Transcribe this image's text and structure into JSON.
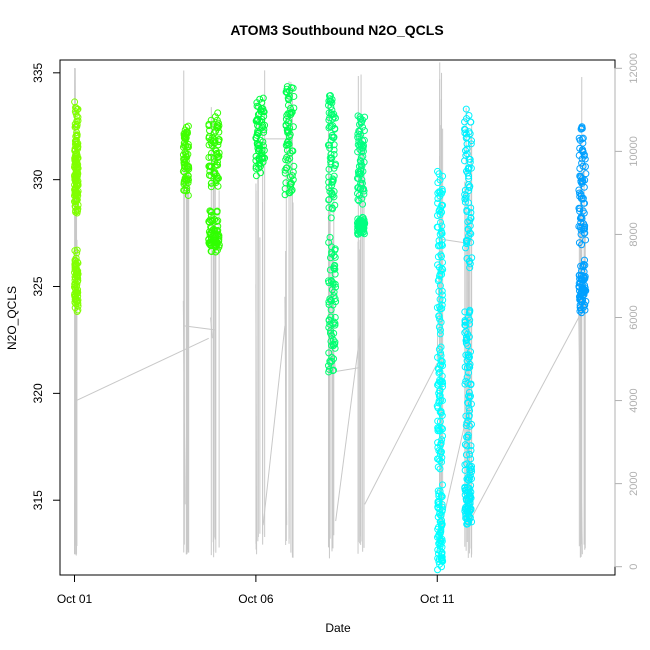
{
  "chart_data": {
    "type": "scatter",
    "title": "ATOM3 Southbound N2O_QCLS",
    "xlabel": "Date",
    "ylabel": "N2O_QCLS",
    "x_ticks": [
      "Oct 01",
      "Oct 06",
      "Oct 11"
    ],
    "x_tick_days": [
      1,
      6,
      11
    ],
    "xlim_days": [
      0.6,
      15.9
    ],
    "ylim": [
      311.5,
      335.6
    ],
    "y_ticks": [
      315,
      320,
      325,
      330,
      335
    ],
    "y2_ticks": [
      0,
      2000,
      4000,
      6000,
      8000,
      10000,
      12000
    ],
    "y2lim": [
      -200,
      12200
    ],
    "series": [
      {
        "day_start": 1.0,
        "day_end": 1.1,
        "color": "#80ff00",
        "values": [
          [
            333.5,
            331.0,
            329.4
          ],
          [
            331.8,
            329.9,
            328.4
          ],
          [
            326.5,
            325.2,
            324.0
          ]
        ]
      },
      {
        "day_start": 4.0,
        "day_end": 4.15,
        "color": "#40ff00",
        "values": [
          [
            332.4,
            331.0,
            329.5
          ]
        ]
      },
      {
        "day_start": 4.7,
        "day_end": 5.0,
        "color": "#30ff00",
        "values": [
          [
            332.9,
            331.3,
            329.7
          ],
          [
            328.4,
            327.2,
            326.8
          ]
        ]
      },
      {
        "day_start": 6.0,
        "day_end": 6.25,
        "color": "#00ff40",
        "values": [
          [
            333.8,
            332.0,
            330.4
          ]
        ]
      },
      {
        "day_start": 6.8,
        "day_end": 7.05,
        "color": "#00ff50",
        "values": [
          [
            334.5,
            332.0,
            329.2
          ]
        ]
      },
      {
        "day_start": 8.0,
        "day_end": 8.2,
        "color": "#00ff70",
        "values": [
          [
            334.0,
            331.5,
            328.5
          ],
          [
            327.0,
            324.0,
            321.0
          ]
        ]
      },
      {
        "day_start": 8.8,
        "day_end": 9.0,
        "color": "#00ff80",
        "values": [
          [
            333.0,
            331.0,
            329.0
          ],
          [
            328.0,
            327.8,
            327.7
          ]
        ]
      },
      {
        "day_start": 11.0,
        "day_end": 11.15,
        "color": "#00ffff",
        "values": [
          [
            330.2,
            327.0,
            323.0
          ],
          [
            322.0,
            319.5,
            316.5
          ],
          [
            315.5,
            313.5,
            311.9
          ]
        ]
      },
      {
        "day_start": 11.75,
        "day_end": 11.95,
        "color": "#00f0ff",
        "values": [
          [
            333.1,
            329.8,
            326.0
          ],
          [
            324.0,
            321.0,
            317.0
          ],
          [
            316.5,
            315.0,
            314.0
          ]
        ]
      },
      {
        "day_start": 14.9,
        "day_end": 15.1,
        "color": "#00a0ff",
        "values": [
          [
            332.4,
            329.5,
            327.0
          ],
          [
            326.0,
            324.8,
            324.0
          ]
        ]
      }
    ]
  }
}
